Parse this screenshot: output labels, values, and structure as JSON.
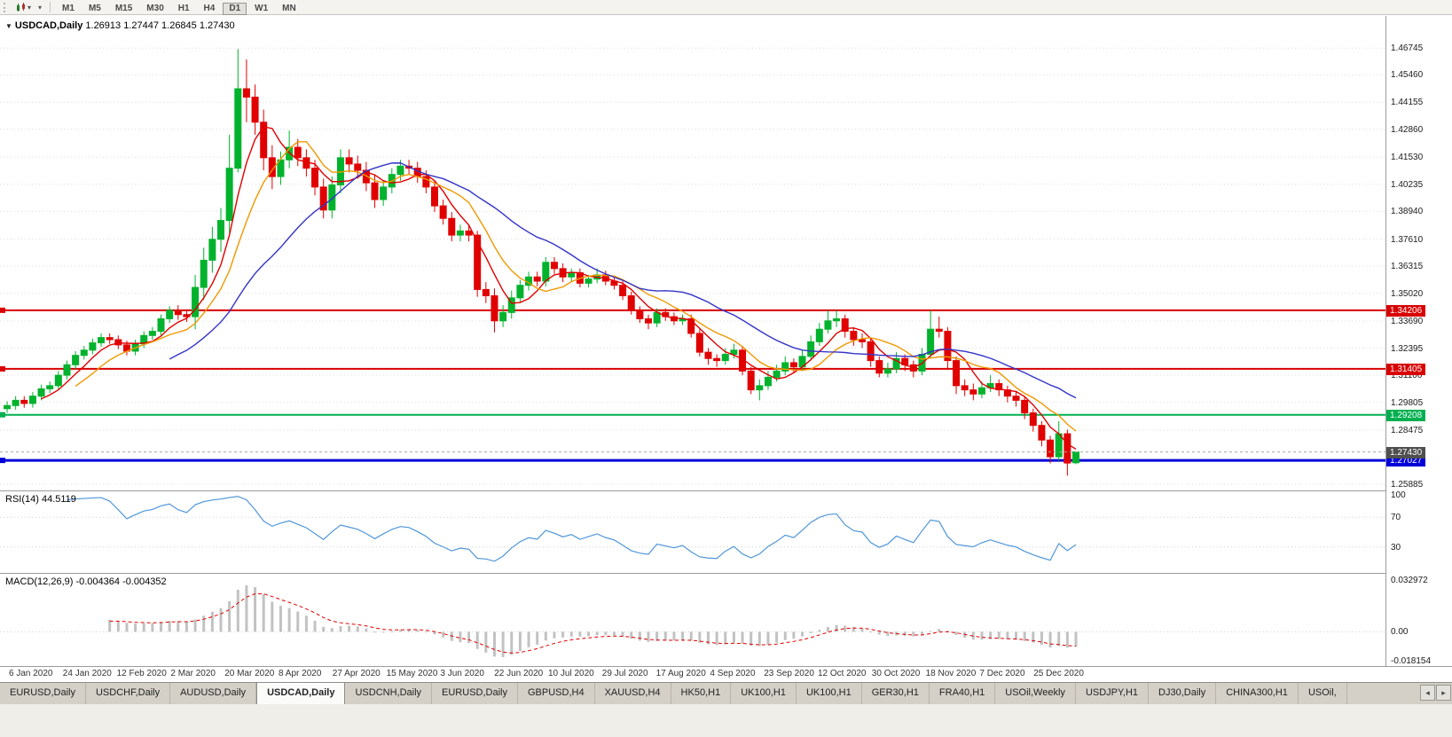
{
  "toolbar": {
    "timeframes": [
      "M1",
      "M5",
      "M15",
      "M30",
      "H1",
      "H4",
      "D1",
      "W1",
      "MN"
    ],
    "active": "D1"
  },
  "chart": {
    "title": "USDCAD,Daily",
    "ohlc": "1.26913 1.27447 1.26845 1.27430"
  },
  "chart_data": {
    "type": "candlestick",
    "symbol": "USDCAD",
    "period": "Daily",
    "up_color": "#00b22c",
    "down_color": "#e00000",
    "price_range": [
      1.2559,
      1.4828
    ],
    "current_price": 1.2743,
    "y_ticks": [
      1.46745,
      1.4546,
      1.44155,
      1.4286,
      1.4153,
      1.40235,
      1.3894,
      1.3761,
      1.36315,
      1.3502,
      1.3369,
      1.32395,
      1.311,
      1.29805,
      1.28475,
      1.25885
    ],
    "x_labels": [
      "6 Jan 2020",
      "24 Jan 2020",
      "12 Feb 2020",
      "2 Mar 2020",
      "20 Mar 2020",
      "8 Apr 2020",
      "27 Apr 2020",
      "15 May 2020",
      "3 Jun 2020",
      "22 Jun 2020",
      "10 Jul 2020",
      "29 Jul 2020",
      "17 Aug 2020",
      "4 Sep 2020",
      "23 Sep 2020",
      "12 Oct 2020",
      "30 Oct 2020",
      "18 Nov 2020",
      "7 Dec 2020",
      "25 Dec 2020"
    ],
    "hlines": [
      {
        "price": 1.34206,
        "color": "#d80000",
        "width": 2
      },
      {
        "price": 1.31405,
        "color": "#d80000",
        "width": 2
      },
      {
        "price": 1.29208,
        "color": "#00b050",
        "width": 2
      },
      {
        "price": 1.27027,
        "color": "#0000d8",
        "width": 3
      }
    ],
    "ma": [
      {
        "name": "ma-fast",
        "calc_period": 5,
        "color": "#e00000"
      },
      {
        "name": "ma-medium",
        "calc_period": 9,
        "color": "#f09800"
      },
      {
        "name": "ma-slow",
        "calc_period": 20,
        "color": "#3434c8"
      }
    ],
    "candles": [
      [
        1.295,
        1.2985,
        1.293,
        1.2965
      ],
      [
        1.2965,
        1.301,
        1.2945,
        1.299
      ],
      [
        1.299,
        1.301,
        1.2955,
        1.2975
      ],
      [
        1.2975,
        1.303,
        1.2955,
        1.301
      ],
      [
        1.301,
        1.3065,
        1.299,
        1.3045
      ],
      [
        1.3045,
        1.308,
        1.3025,
        1.306
      ],
      [
        1.306,
        1.313,
        1.304,
        1.311
      ],
      [
        1.311,
        1.318,
        1.309,
        1.316
      ],
      [
        1.316,
        1.3225,
        1.314,
        1.3205
      ],
      [
        1.3205,
        1.325,
        1.3185,
        1.323
      ],
      [
        1.323,
        1.3285,
        1.321,
        1.3265
      ],
      [
        1.3265,
        1.331,
        1.3245,
        1.329
      ],
      [
        1.329,
        1.331,
        1.326,
        1.328
      ],
      [
        1.328,
        1.33,
        1.3235,
        1.3255
      ],
      [
        1.3255,
        1.3275,
        1.3205,
        1.3225
      ],
      [
        1.3225,
        1.328,
        1.3205,
        1.326
      ],
      [
        1.326,
        1.332,
        1.324,
        1.33
      ],
      [
        1.33,
        1.334,
        1.328,
        1.332
      ],
      [
        1.332,
        1.34,
        1.33,
        1.338
      ],
      [
        1.338,
        1.344,
        1.336,
        1.342
      ],
      [
        1.342,
        1.3445,
        1.3375,
        1.34
      ],
      [
        1.34,
        1.3425,
        1.3365,
        1.339
      ],
      [
        1.339,
        1.359,
        1.333,
        1.353
      ],
      [
        1.353,
        1.372,
        1.347,
        1.366
      ],
      [
        1.366,
        1.382,
        1.36,
        1.376
      ],
      [
        1.376,
        1.391,
        1.37,
        1.385
      ],
      [
        1.385,
        1.426,
        1.379,
        1.41
      ],
      [
        1.41,
        1.467,
        1.408,
        1.448
      ],
      [
        1.448,
        1.462,
        1.432,
        1.444
      ],
      [
        1.444,
        1.45,
        1.426,
        1.432
      ],
      [
        1.432,
        1.438,
        1.409,
        1.415
      ],
      [
        1.415,
        1.421,
        1.4,
        1.406
      ],
      [
        1.406,
        1.418,
        1.402,
        1.414
      ],
      [
        1.414,
        1.428,
        1.41,
        1.42
      ],
      [
        1.42,
        1.424,
        1.411,
        1.415
      ],
      [
        1.415,
        1.419,
        1.406,
        1.41
      ],
      [
        1.41,
        1.414,
        1.397,
        1.401
      ],
      [
        1.401,
        1.405,
        1.386,
        1.39
      ],
      [
        1.39,
        1.406,
        1.386,
        1.402
      ],
      [
        1.402,
        1.419,
        1.398,
        1.415
      ],
      [
        1.415,
        1.419,
        1.408,
        1.412
      ],
      [
        1.412,
        1.416,
        1.405,
        1.409
      ],
      [
        1.409,
        1.413,
        1.399,
        1.403
      ],
      [
        1.403,
        1.407,
        1.391,
        1.395
      ],
      [
        1.395,
        1.404,
        1.392,
        1.401
      ],
      [
        1.401,
        1.41,
        1.398,
        1.407
      ],
      [
        1.407,
        1.414,
        1.404,
        1.411
      ],
      [
        1.411,
        1.414,
        1.407,
        1.41
      ],
      [
        1.41,
        1.413,
        1.403,
        1.406
      ],
      [
        1.406,
        1.409,
        1.398,
        1.401
      ],
      [
        1.401,
        1.404,
        1.389,
        1.392
      ],
      [
        1.392,
        1.395,
        1.383,
        1.386
      ],
      [
        1.386,
        1.389,
        1.375,
        1.378
      ],
      [
        1.378,
        1.383,
        1.375,
        1.38
      ],
      [
        1.38,
        1.383,
        1.375,
        1.378
      ],
      [
        1.378,
        1.38,
        1.3485,
        1.352
      ],
      [
        1.352,
        1.3555,
        1.3455,
        1.349
      ],
      [
        1.349,
        1.3525,
        1.3315,
        1.337
      ],
      [
        1.337,
        1.3445,
        1.334,
        1.341
      ],
      [
        1.341,
        1.3515,
        1.338,
        1.348
      ],
      [
        1.348,
        1.3565,
        1.3455,
        1.354
      ],
      [
        1.354,
        1.3605,
        1.3515,
        1.358
      ],
      [
        1.358,
        1.3605,
        1.3535,
        1.356
      ],
      [
        1.356,
        1.3675,
        1.3535,
        1.365
      ],
      [
        1.365,
        1.3675,
        1.3595,
        1.362
      ],
      [
        1.362,
        1.3645,
        1.3555,
        1.358
      ],
      [
        1.358,
        1.362,
        1.356,
        1.36
      ],
      [
        1.36,
        1.362,
        1.353,
        1.355
      ],
      [
        1.355,
        1.359,
        1.353,
        1.357
      ],
      [
        1.357,
        1.362,
        1.355,
        1.359
      ],
      [
        1.359,
        1.361,
        1.354,
        1.356
      ],
      [
        1.356,
        1.358,
        1.352,
        1.354
      ],
      [
        1.354,
        1.356,
        1.347,
        1.349
      ],
      [
        1.349,
        1.351,
        1.34,
        1.342
      ],
      [
        1.342,
        1.344,
        1.336,
        1.338
      ],
      [
        1.338,
        1.34,
        1.333,
        1.336
      ],
      [
        1.336,
        1.343,
        1.334,
        1.341
      ],
      [
        1.341,
        1.343,
        1.337,
        1.339
      ],
      [
        1.339,
        1.341,
        1.335,
        1.337
      ],
      [
        1.337,
        1.34,
        1.335,
        1.338
      ],
      [
        1.338,
        1.34,
        1.329,
        1.331
      ],
      [
        1.331,
        1.333,
        1.32,
        1.322
      ],
      [
        1.322,
        1.324,
        1.316,
        1.319
      ],
      [
        1.319,
        1.321,
        1.315,
        1.318
      ],
      [
        1.318,
        1.324,
        1.316,
        1.321
      ],
      [
        1.321,
        1.326,
        1.319,
        1.323
      ],
      [
        1.323,
        1.325,
        1.311,
        1.313
      ],
      [
        1.313,
        1.315,
        1.302,
        1.304
      ],
      [
        1.304,
        1.309,
        1.299,
        1.306
      ],
      [
        1.306,
        1.313,
        1.304,
        1.31
      ],
      [
        1.31,
        1.316,
        1.308,
        1.313
      ],
      [
        1.313,
        1.32,
        1.311,
        1.317
      ],
      [
        1.317,
        1.319,
        1.312,
        1.315
      ],
      [
        1.315,
        1.323,
        1.313,
        1.32
      ],
      [
        1.32,
        1.33,
        1.318,
        1.327
      ],
      [
        1.327,
        1.336,
        1.325,
        1.333
      ],
      [
        1.333,
        1.342,
        1.331,
        1.337
      ],
      [
        1.337,
        1.342,
        1.334,
        1.338
      ],
      [
        1.338,
        1.34,
        1.329,
        1.332
      ],
      [
        1.332,
        1.334,
        1.325,
        1.328
      ],
      [
        1.328,
        1.331,
        1.324,
        1.327
      ],
      [
        1.327,
        1.329,
        1.315,
        1.318
      ],
      [
        1.318,
        1.32,
        1.31,
        1.312
      ],
      [
        1.312,
        1.317,
        1.31,
        1.314
      ],
      [
        1.314,
        1.322,
        1.312,
        1.319
      ],
      [
        1.319,
        1.321,
        1.313,
        1.316
      ],
      [
        1.316,
        1.318,
        1.31,
        1.313
      ],
      [
        1.313,
        1.324,
        1.311,
        1.321
      ],
      [
        1.321,
        1.342,
        1.319,
        1.333
      ],
      [
        1.333,
        1.339,
        1.329,
        1.332
      ],
      [
        1.332,
        1.334,
        1.314,
        1.318
      ],
      [
        1.318,
        1.32,
        1.302,
        1.306
      ],
      [
        1.306,
        1.309,
        1.301,
        1.304
      ],
      [
        1.304,
        1.307,
        1.299,
        1.302
      ],
      [
        1.302,
        1.308,
        1.3,
        1.305
      ],
      [
        1.305,
        1.311,
        1.303,
        1.307
      ],
      [
        1.307,
        1.309,
        1.301,
        1.304
      ],
      [
        1.304,
        1.306,
        1.298,
        1.301
      ],
      [
        1.301,
        1.303,
        1.296,
        1.299
      ],
      [
        1.299,
        1.301,
        1.29,
        1.293
      ],
      [
        1.293,
        1.295,
        1.284,
        1.287
      ],
      [
        1.287,
        1.289,
        1.277,
        1.28
      ],
      [
        1.28,
        1.282,
        1.2688,
        1.272
      ],
      [
        1.272,
        1.289,
        1.27,
        1.283
      ],
      [
        1.283,
        1.285,
        1.263,
        1.269
      ],
      [
        1.26913,
        1.27447,
        1.26845,
        1.2743
      ]
    ]
  },
  "rsi": {
    "label": "RSI(14) 44.5119",
    "calc_period": 7,
    "levels": [
      100,
      70,
      30
    ],
    "color": "#4f96d8"
  },
  "macd": {
    "label": "MACD(12,26,9) -0.004364 -0.004352",
    "calc_fast": 6,
    "calc_slow": 13,
    "calc_signal": 5,
    "axis_labels": [
      "0.032972",
      "0.00",
      "-0.018154"
    ],
    "axis_values": [
      0.032972,
      0,
      -0.018154
    ],
    "range": [
      -0.0195,
      0.0345
    ],
    "hist_color": "#c2c2c2",
    "signal_color": "#e00000"
  },
  "tabs": {
    "items": [
      "EURUSD,Daily",
      "USDCHF,Daily",
      "AUDUSD,Daily",
      "USDCAD,Daily",
      "USDCNH,Daily",
      "EURUSD,Daily",
      "GBPUSD,H4",
      "XAUUSD,H4",
      "HK50,H1",
      "UK100,H1",
      "UK100,H1",
      "GER30,H1",
      "FRA40,H1",
      "USOil,Weekly",
      "USDJPY,H1",
      "DJ30,Daily",
      "CHINA300,H1",
      "USOil,"
    ],
    "active_index": 3,
    "scroll_left": "◂",
    "scroll_right": "▸"
  }
}
